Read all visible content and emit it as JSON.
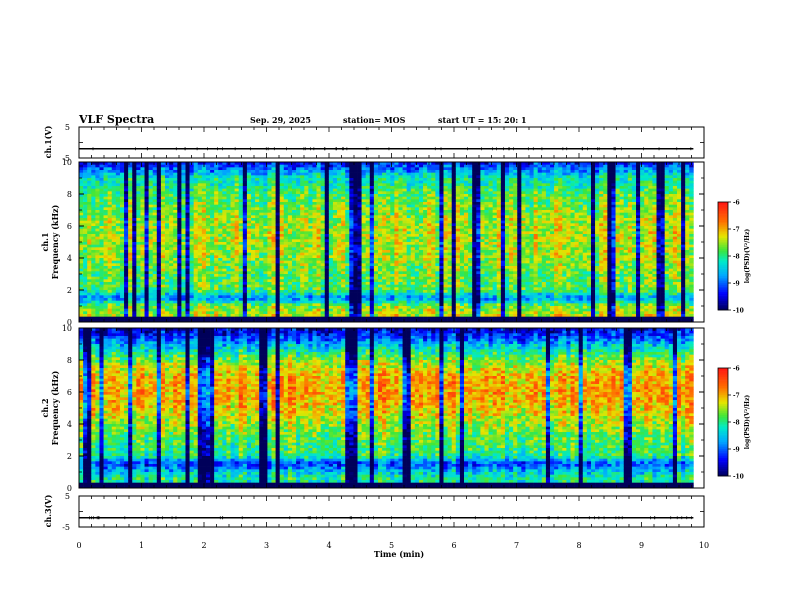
{
  "header": {
    "title": "VLF Spectra",
    "date": "Sep. 29, 2025",
    "station": "station= MOS",
    "start_ut": "start  UT =  15: 20: 1"
  },
  "colorbar_label": "log(PSD)(V²/Hz)",
  "chart_data": [
    {
      "type": "line",
      "name": "ch1-waveform",
      "ylabel": "ch.1(V)",
      "ylim": [
        -5,
        5
      ],
      "yticks": [
        5,
        -5
      ],
      "xlim": [
        0,
        10
      ],
      "series": [
        {
          "name": "ch.1",
          "constant_value": -2
        }
      ]
    },
    {
      "type": "heatmap",
      "name": "ch1-spectrogram",
      "ylabel": "ch.1",
      "ylabel2": "Frequency (kHz)",
      "ylim": [
        0,
        10
      ],
      "yticks": [
        0,
        2,
        4,
        6,
        8,
        10
      ],
      "xlim": [
        0,
        9.83
      ],
      "colorbar": {
        "range": [
          -10,
          -6
        ],
        "ticks": [
          -6,
          -7,
          -8,
          -9,
          -10
        ],
        "label": "log(PSD)(V²/Hz)"
      },
      "profile": {
        "freq_khz": [
          0.0,
          0.5,
          1.0,
          1.5,
          2.0,
          3.0,
          4.0,
          5.0,
          6.0,
          7.0,
          8.0,
          9.0,
          9.5,
          10.0
        ],
        "log_psd": [
          -7.0,
          -7.4,
          -7.6,
          -8.8,
          -7.8,
          -7.7,
          -7.5,
          -7.4,
          -7.4,
          -7.6,
          -7.8,
          -8.2,
          -8.8,
          -9.4
        ]
      }
    },
    {
      "type": "heatmap",
      "name": "ch2-spectrogram",
      "ylabel": "ch.2",
      "ylabel2": "Frequency (kHz)",
      "ylim": [
        0,
        10
      ],
      "yticks": [
        0,
        2,
        4,
        6,
        8,
        10
      ],
      "xlim": [
        0,
        9.83
      ],
      "colorbar": {
        "range": [
          -10,
          -6
        ],
        "ticks": [
          -6,
          -7,
          -8,
          -9,
          -10
        ],
        "label": "log(PSD)(V²/Hz)"
      },
      "profile": {
        "freq_khz": [
          0.0,
          0.5,
          1.0,
          1.5,
          2.0,
          3.0,
          4.0,
          5.0,
          6.0,
          7.0,
          8.0,
          9.0,
          9.5,
          10.0
        ],
        "log_psd": [
          -8.6,
          -8.0,
          -8.4,
          -9.2,
          -8.0,
          -7.8,
          -7.5,
          -7.1,
          -6.9,
          -7.0,
          -7.6,
          -8.6,
          -9.2,
          -9.6
        ]
      }
    },
    {
      "type": "line",
      "name": "ch3-waveform",
      "ylabel": "ch.3(V)",
      "ylim": [
        -5,
        5
      ],
      "yticks": [
        5,
        -5
      ],
      "xlim": [
        0,
        10
      ],
      "xlabel": "Time  (min)",
      "xticks": [
        0,
        1,
        2,
        3,
        4,
        5,
        6,
        7,
        8,
        9,
        10
      ],
      "series": [
        {
          "name": "ch.3",
          "constant_value": -2
        }
      ]
    }
  ]
}
